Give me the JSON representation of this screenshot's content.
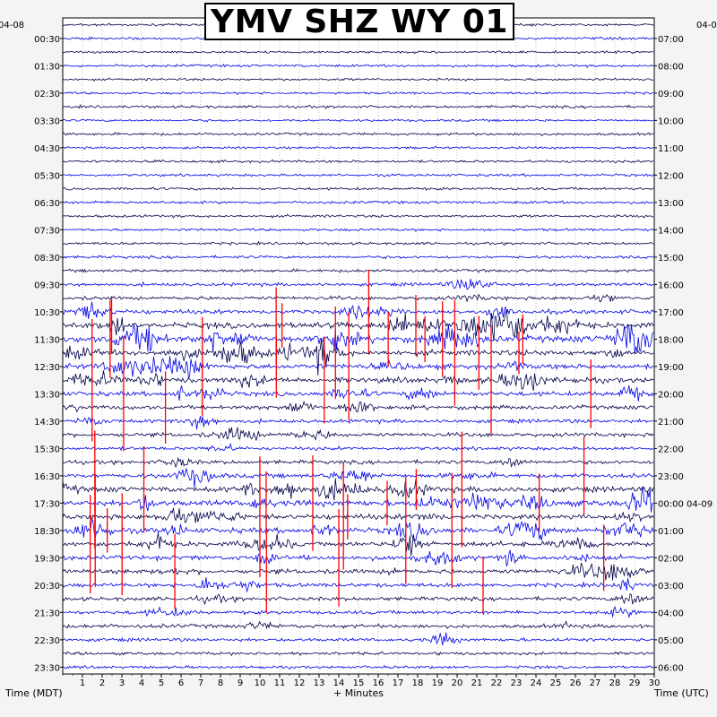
{
  "chart_data": {
    "type": "helicorder",
    "title": "YMV SHZ WY 01",
    "left_date": "04-08",
    "right_date": "04-0",
    "left_axis_label": "Time (MDT)",
    "right_axis_label": "Time (UTC)",
    "x_axis_label": "+ Minutes",
    "xlim": [
      0,
      30
    ],
    "x_ticks": [
      1,
      2,
      3,
      4,
      5,
      6,
      7,
      8,
      9,
      10,
      11,
      12,
      13,
      14,
      15,
      16,
      17,
      18,
      19,
      20,
      21,
      22,
      23,
      24,
      25,
      26,
      27,
      28,
      29,
      30
    ],
    "left_ticks": [
      "00:30",
      "01:30",
      "02:30",
      "03:30",
      "04:30",
      "05:30",
      "06:30",
      "07:30",
      "08:30",
      "09:30",
      "10:30",
      "11:30",
      "12:30",
      "13:30",
      "14:30",
      "15:30",
      "16:30",
      "17:30",
      "18:30",
      "19:30",
      "20:30",
      "21:30",
      "22:30",
      "23:30"
    ],
    "right_ticks": [
      "07:00",
      "08:00",
      "09:00",
      "10:00",
      "11:00",
      "12:00",
      "13:00",
      "14:00",
      "15:00",
      "16:00",
      "17:00",
      "18:00",
      "19:00",
      "20:00",
      "21:00",
      "22:00",
      "23:00",
      "00:00 04-09",
      "01:00",
      "02:00",
      "03:00",
      "04:00",
      "05:00",
      "06:00"
    ],
    "trace_colors": [
      "#00004a",
      "#0000e8"
    ],
    "clip_color": "#ff0000",
    "rows_per_hour": 2,
    "row_count": 48,
    "row_activity": [
      0.5,
      0.6,
      0.5,
      0.6,
      0.5,
      0.5,
      0.6,
      0.5,
      0.6,
      0.5,
      0.6,
      0.6,
      0.6,
      0.7,
      0.6,
      0.6,
      0.6,
      0.7,
      0.8,
      1.0,
      1.1,
      1.4,
      2.2,
      2.4,
      2.0,
      1.8,
      1.9,
      1.6,
      1.3,
      1.2,
      1.2,
      1.0,
      1.2,
      1.4,
      2.0,
      2.2,
      1.8,
      2.0,
      1.6,
      1.5,
      1.5,
      1.3,
      1.2,
      1.1,
      1.2,
      1.0,
      0.8,
      0.7
    ]
  }
}
